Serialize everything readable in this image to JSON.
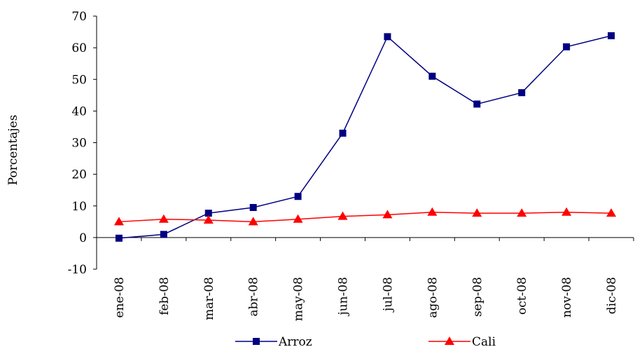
{
  "chart_data": {
    "type": "line",
    "title": "",
    "xlabel": "",
    "ylabel": "Porcentajes",
    "categories": [
      "ene-08",
      "feb-08",
      "mar-08",
      "abr-08",
      "may-08",
      "jun-08",
      "jul-08",
      "ago-08",
      "sep-08",
      "oct-08",
      "nov-08",
      "dic-08"
    ],
    "ylim": [
      -10,
      70
    ],
    "yticks": [
      -10,
      0,
      10,
      20,
      30,
      40,
      50,
      60,
      70
    ],
    "grid": false,
    "legend": "bottom",
    "series": [
      {
        "name": "Arroz",
        "color": "#000080",
        "marker": "square",
        "values": [
          -0.2,
          1.0,
          7.7,
          9.5,
          13.0,
          33.0,
          63.5,
          51.0,
          42.2,
          45.8,
          60.3,
          63.8
        ]
      },
      {
        "name": "Cali",
        "color": "#ff0000",
        "marker": "triangle",
        "values": [
          5.0,
          5.8,
          5.5,
          5.0,
          5.8,
          6.7,
          7.2,
          8.0,
          7.7,
          7.7,
          8.0,
          7.7
        ]
      }
    ]
  }
}
